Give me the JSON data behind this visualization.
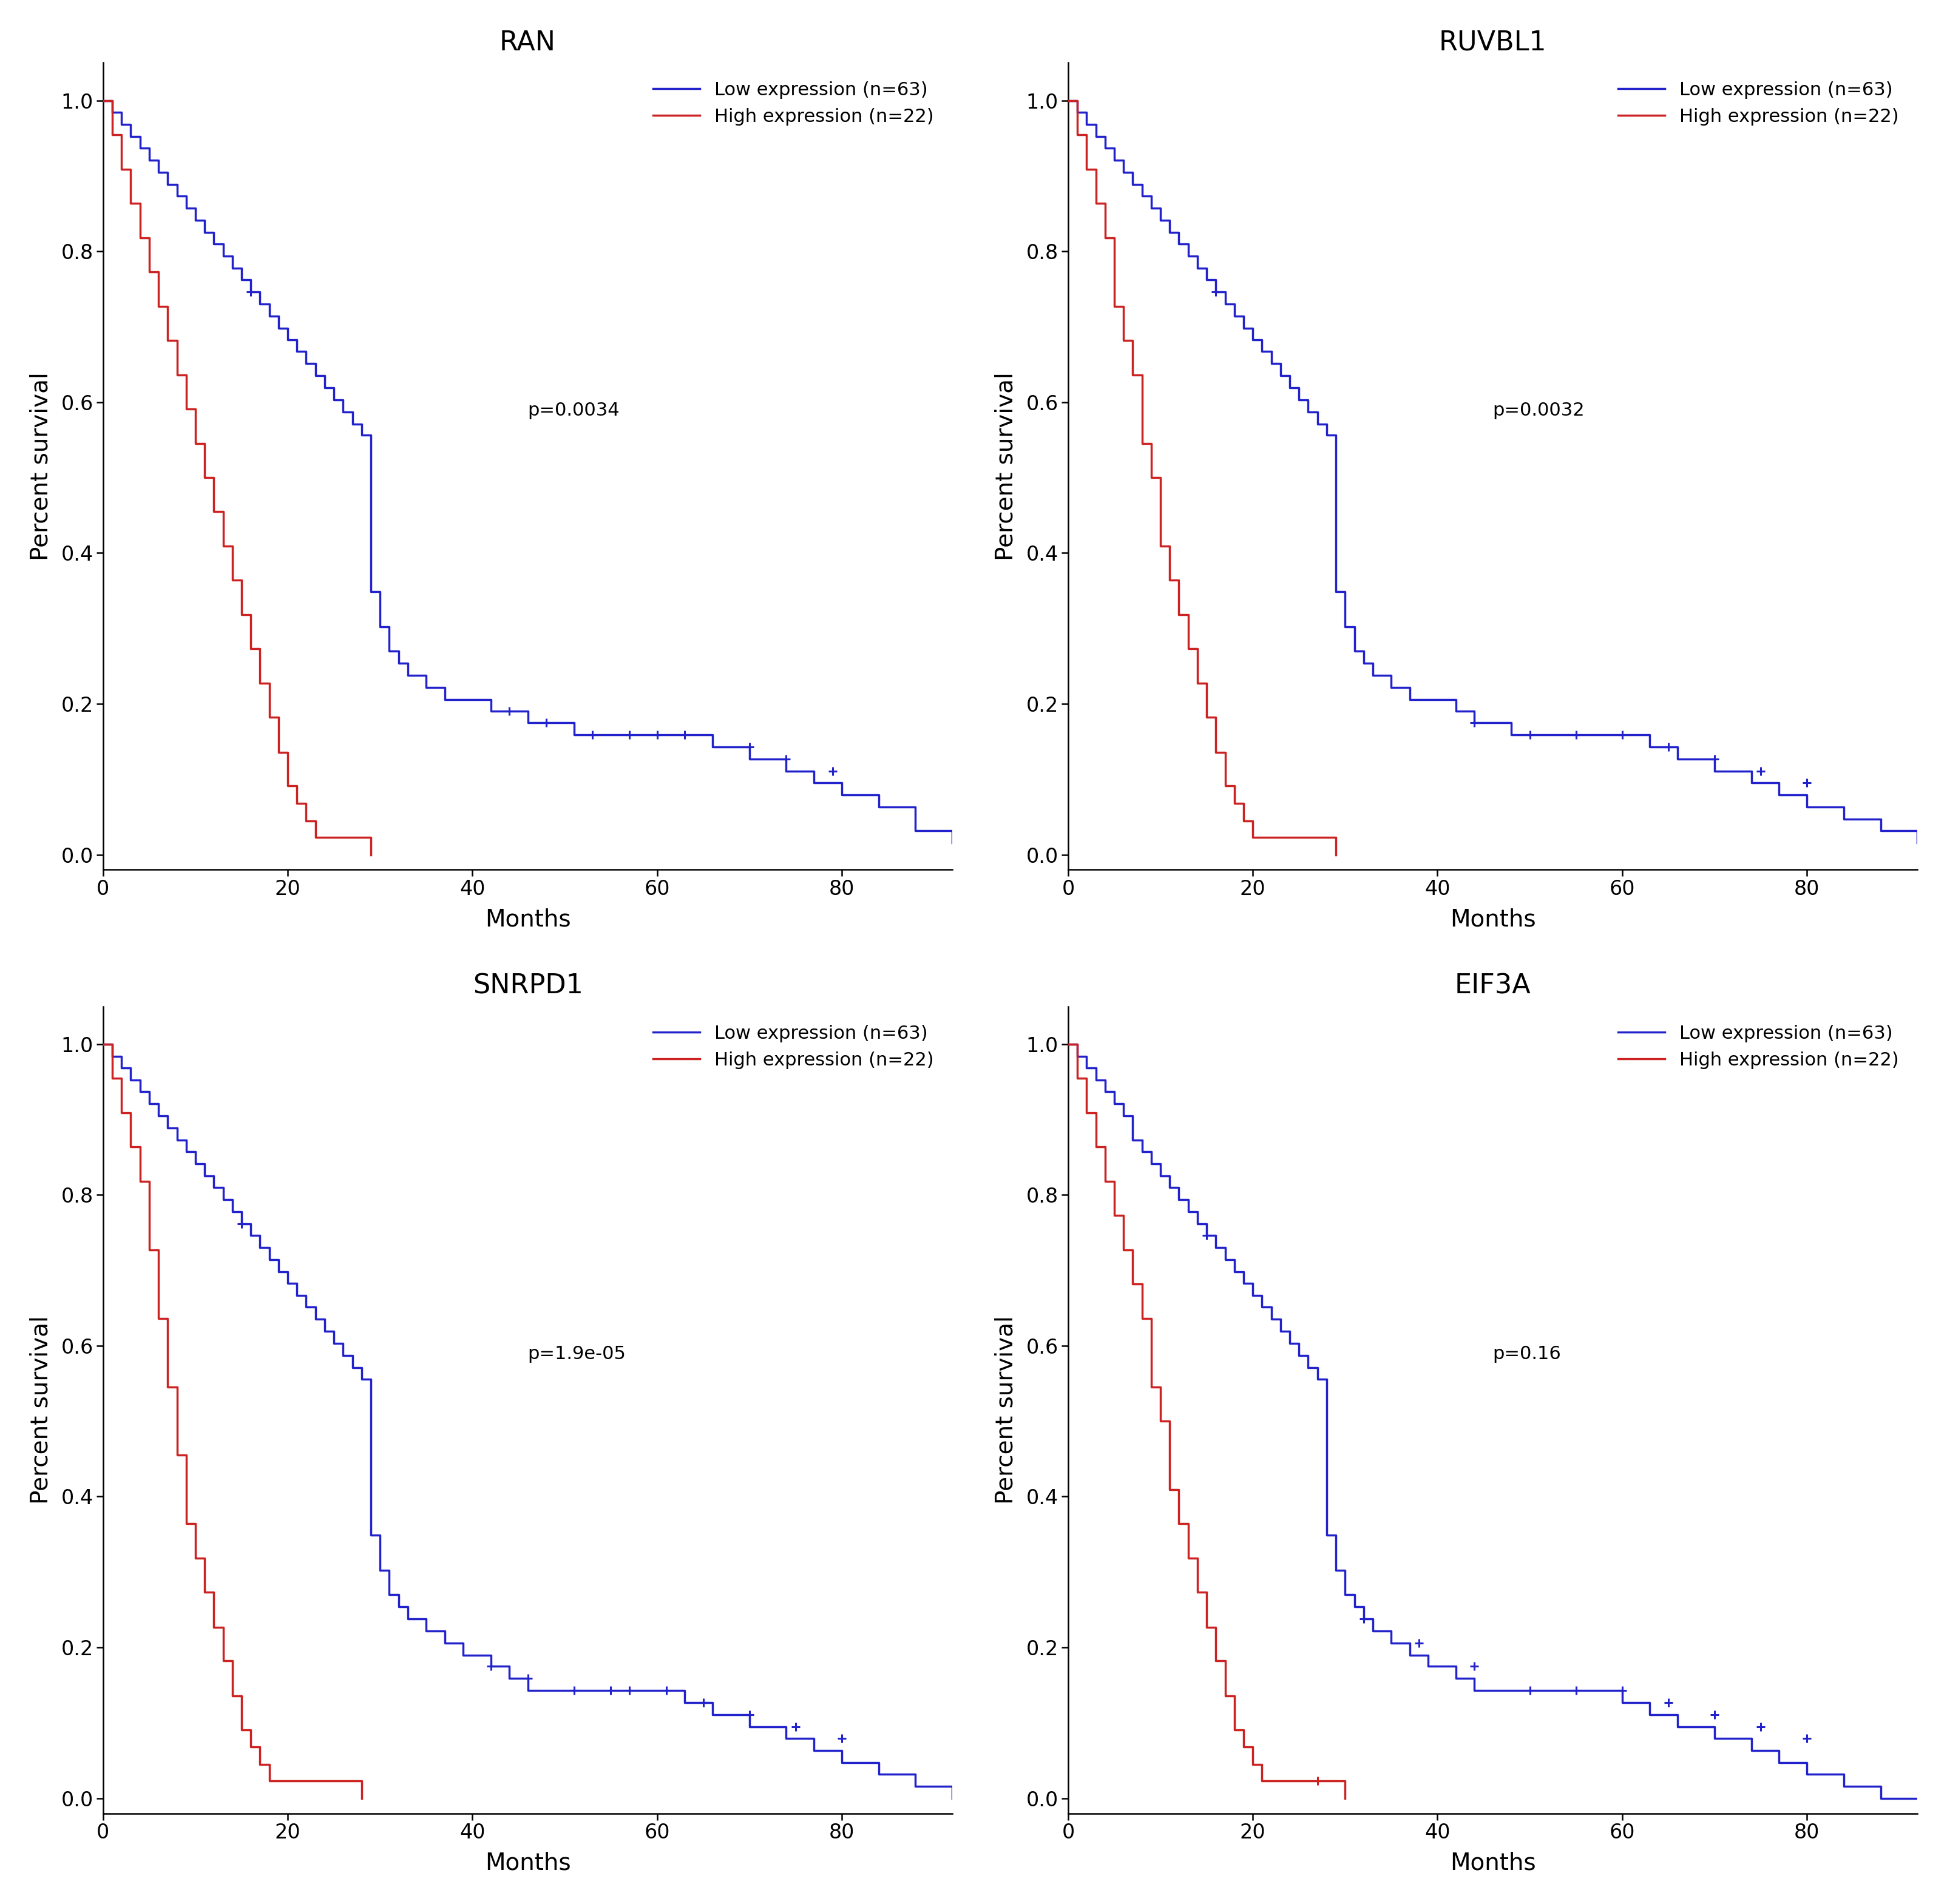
{
  "panels": [
    {
      "title": "RAN",
      "pvalue": "p=0.0034",
      "low_color": "#2222cc",
      "high_color": "#cc2222",
      "low_times": [
        0,
        1,
        2,
        3,
        4,
        5,
        6,
        7,
        8,
        9,
        10,
        11,
        12,
        13,
        14,
        15,
        16,
        17,
        18,
        19,
        20,
        21,
        22,
        23,
        24,
        25,
        26,
        27,
        28,
        29,
        30,
        31,
        32,
        33,
        35,
        37,
        39,
        42,
        44,
        46,
        48,
        51,
        54,
        57,
        60,
        63,
        66,
        70,
        74,
        77,
        80,
        84,
        88,
        92
      ],
      "low_surv": [
        1.0,
        0.984,
        0.968,
        0.952,
        0.937,
        0.921,
        0.905,
        0.889,
        0.873,
        0.857,
        0.841,
        0.825,
        0.81,
        0.794,
        0.778,
        0.762,
        0.746,
        0.73,
        0.714,
        0.698,
        0.683,
        0.667,
        0.651,
        0.635,
        0.619,
        0.603,
        0.587,
        0.571,
        0.556,
        0.349,
        0.302,
        0.27,
        0.254,
        0.238,
        0.222,
        0.206,
        0.206,
        0.19,
        0.19,
        0.175,
        0.175,
        0.159,
        0.159,
        0.159,
        0.159,
        0.159,
        0.143,
        0.127,
        0.111,
        0.095,
        0.079,
        0.063,
        0.032,
        0.016
      ],
      "low_censor_times": [
        16,
        44,
        48,
        53,
        57,
        60,
        63,
        70,
        74,
        79
      ],
      "low_censor_surv": [
        0.746,
        0.19,
        0.175,
        0.159,
        0.159,
        0.159,
        0.159,
        0.143,
        0.127,
        0.111
      ],
      "high_times": [
        0,
        1,
        2,
        3,
        4,
        5,
        6,
        7,
        8,
        9,
        10,
        11,
        12,
        13,
        14,
        15,
        16,
        17,
        18,
        19,
        20,
        21,
        22,
        23,
        24,
        25,
        26,
        27,
        28,
        29
      ],
      "high_surv": [
        1.0,
        0.955,
        0.909,
        0.864,
        0.818,
        0.773,
        0.727,
        0.682,
        0.636,
        0.591,
        0.545,
        0.5,
        0.455,
        0.409,
        0.364,
        0.318,
        0.273,
        0.227,
        0.182,
        0.136,
        0.091,
        0.068,
        0.045,
        0.023,
        0.023,
        0.023,
        0.023,
        0.023,
        0.023,
        0.0
      ],
      "high_censor_times": [],
      "high_censor_surv": []
    },
    {
      "title": "RUVBL1",
      "pvalue": "p=0.0032",
      "low_color": "#2222cc",
      "high_color": "#cc2222",
      "low_times": [
        0,
        1,
        2,
        3,
        4,
        5,
        6,
        7,
        8,
        9,
        10,
        11,
        12,
        13,
        14,
        15,
        16,
        17,
        18,
        19,
        20,
        21,
        22,
        23,
        24,
        25,
        26,
        27,
        28,
        29,
        30,
        31,
        32,
        33,
        35,
        37,
        39,
        42,
        44,
        46,
        48,
        51,
        54,
        57,
        60,
        63,
        66,
        70,
        74,
        77,
        80,
        84,
        88,
        92
      ],
      "low_surv": [
        1.0,
        0.984,
        0.968,
        0.952,
        0.937,
        0.921,
        0.905,
        0.889,
        0.873,
        0.857,
        0.841,
        0.825,
        0.81,
        0.794,
        0.778,
        0.762,
        0.746,
        0.73,
        0.714,
        0.698,
        0.683,
        0.667,
        0.651,
        0.635,
        0.619,
        0.603,
        0.587,
        0.571,
        0.556,
        0.349,
        0.302,
        0.27,
        0.254,
        0.238,
        0.222,
        0.206,
        0.206,
        0.19,
        0.175,
        0.175,
        0.159,
        0.159,
        0.159,
        0.159,
        0.159,
        0.143,
        0.127,
        0.111,
        0.095,
        0.079,
        0.063,
        0.047,
        0.032,
        0.016
      ],
      "low_censor_times": [
        16,
        44,
        50,
        55,
        60,
        65,
        70,
        75,
        80
      ],
      "low_censor_surv": [
        0.746,
        0.175,
        0.159,
        0.159,
        0.159,
        0.143,
        0.127,
        0.111,
        0.095
      ],
      "high_times": [
        0,
        1,
        2,
        3,
        4,
        5,
        6,
        7,
        8,
        9,
        10,
        11,
        12,
        13,
        14,
        15,
        16,
        17,
        18,
        19,
        20,
        21,
        22,
        23,
        24,
        25,
        26,
        27,
        28,
        29
      ],
      "high_surv": [
        1.0,
        0.955,
        0.909,
        0.864,
        0.818,
        0.727,
        0.682,
        0.636,
        0.545,
        0.5,
        0.409,
        0.364,
        0.318,
        0.273,
        0.227,
        0.182,
        0.136,
        0.091,
        0.068,
        0.045,
        0.023,
        0.023,
        0.023,
        0.023,
        0.023,
        0.023,
        0.023,
        0.023,
        0.023,
        0.0
      ],
      "high_censor_times": [],
      "high_censor_surv": []
    },
    {
      "title": "SNRPD1",
      "pvalue": "p=1.9e-05",
      "low_color": "#2222cc",
      "high_color": "#cc2222",
      "low_times": [
        0,
        1,
        2,
        3,
        4,
        5,
        6,
        7,
        8,
        9,
        10,
        11,
        12,
        13,
        14,
        15,
        16,
        17,
        18,
        19,
        20,
        21,
        22,
        23,
        24,
        25,
        26,
        27,
        28,
        29,
        30,
        31,
        32,
        33,
        35,
        37,
        39,
        42,
        44,
        46,
        48,
        51,
        54,
        57,
        60,
        63,
        66,
        70,
        74,
        77,
        80,
        84,
        88,
        92
      ],
      "low_surv": [
        1.0,
        0.984,
        0.968,
        0.952,
        0.937,
        0.921,
        0.905,
        0.889,
        0.873,
        0.857,
        0.841,
        0.825,
        0.81,
        0.794,
        0.778,
        0.762,
        0.746,
        0.73,
        0.714,
        0.698,
        0.683,
        0.667,
        0.651,
        0.635,
        0.619,
        0.603,
        0.587,
        0.571,
        0.556,
        0.349,
        0.302,
        0.27,
        0.254,
        0.238,
        0.222,
        0.206,
        0.19,
        0.175,
        0.159,
        0.143,
        0.143,
        0.143,
        0.143,
        0.143,
        0.143,
        0.127,
        0.111,
        0.095,
        0.079,
        0.063,
        0.047,
        0.032,
        0.016,
        0.0
      ],
      "low_censor_times": [
        15,
        42,
        46,
        51,
        55,
        57,
        61,
        65,
        70,
        75,
        80
      ],
      "low_censor_surv": [
        0.762,
        0.175,
        0.159,
        0.143,
        0.143,
        0.143,
        0.143,
        0.127,
        0.111,
        0.095,
        0.079
      ],
      "high_times": [
        0,
        1,
        2,
        3,
        4,
        5,
        6,
        7,
        8,
        9,
        10,
        11,
        12,
        13,
        14,
        15,
        16,
        17,
        18,
        19,
        20,
        21,
        22,
        23,
        24,
        25,
        26,
        27,
        28
      ],
      "high_surv": [
        1.0,
        0.955,
        0.909,
        0.864,
        0.818,
        0.727,
        0.636,
        0.545,
        0.455,
        0.364,
        0.318,
        0.273,
        0.227,
        0.182,
        0.136,
        0.091,
        0.068,
        0.045,
        0.023,
        0.023,
        0.023,
        0.023,
        0.023,
        0.023,
        0.023,
        0.023,
        0.023,
        0.023,
        0.0
      ],
      "high_censor_times": [],
      "high_censor_surv": []
    },
    {
      "title": "EIF3A",
      "pvalue": "p=0.16",
      "low_color": "#2222cc",
      "high_color": "#cc2222",
      "low_times": [
        0,
        1,
        2,
        3,
        4,
        5,
        6,
        7,
        8,
        9,
        10,
        11,
        12,
        13,
        14,
        15,
        16,
        17,
        18,
        19,
        20,
        21,
        22,
        23,
        24,
        25,
        26,
        27,
        28,
        29,
        30,
        31,
        32,
        33,
        35,
        37,
        39,
        42,
        44,
        46,
        48,
        51,
        54,
        57,
        60,
        63,
        66,
        70,
        74,
        77,
        80,
        84,
        88,
        92
      ],
      "low_surv": [
        1.0,
        0.984,
        0.968,
        0.952,
        0.937,
        0.921,
        0.905,
        0.873,
        0.857,
        0.841,
        0.825,
        0.81,
        0.794,
        0.778,
        0.762,
        0.746,
        0.73,
        0.714,
        0.698,
        0.683,
        0.667,
        0.651,
        0.635,
        0.619,
        0.603,
        0.587,
        0.571,
        0.556,
        0.349,
        0.302,
        0.27,
        0.254,
        0.238,
        0.222,
        0.206,
        0.19,
        0.175,
        0.159,
        0.143,
        0.143,
        0.143,
        0.143,
        0.143,
        0.143,
        0.127,
        0.111,
        0.095,
        0.079,
        0.063,
        0.047,
        0.032,
        0.016,
        0.0,
        0.0
      ],
      "low_censor_times": [
        15,
        32,
        38,
        44,
        50,
        55,
        60,
        65,
        70,
        75,
        80
      ],
      "low_censor_surv": [
        0.746,
        0.238,
        0.206,
        0.175,
        0.143,
        0.143,
        0.143,
        0.127,
        0.111,
        0.095,
        0.079
      ],
      "high_times": [
        0,
        1,
        2,
        3,
        4,
        5,
        6,
        7,
        8,
        9,
        10,
        11,
        12,
        13,
        14,
        15,
        16,
        17,
        18,
        19,
        20,
        21,
        22,
        23,
        24,
        25,
        26,
        27,
        28,
        29,
        30
      ],
      "high_surv": [
        1.0,
        0.955,
        0.909,
        0.864,
        0.818,
        0.773,
        0.727,
        0.682,
        0.636,
        0.545,
        0.5,
        0.409,
        0.364,
        0.318,
        0.273,
        0.227,
        0.182,
        0.136,
        0.091,
        0.068,
        0.045,
        0.023,
        0.023,
        0.023,
        0.023,
        0.023,
        0.023,
        0.023,
        0.023,
        0.023,
        0.0
      ],
      "high_censor_times": [
        27
      ],
      "high_censor_surv": [
        0.023
      ]
    }
  ],
  "xlabel": "Months",
  "ylabel": "Percent survival",
  "xlim": [
    0,
    92
  ],
  "ylim": [
    -0.02,
    1.05
  ],
  "xticks": [
    0,
    20,
    40,
    60,
    80
  ],
  "yticks": [
    0.0,
    0.2,
    0.4,
    0.6,
    0.8,
    1.0
  ],
  "legend_low": "Low expression (n=63)",
  "legend_high": "High expression (n=22)",
  "bg_color": "#ffffff",
  "line_width": 2.5,
  "title_fontsize": 32,
  "label_fontsize": 28,
  "tick_fontsize": 24,
  "legend_fontsize": 22,
  "pvalue_fontsize": 22
}
